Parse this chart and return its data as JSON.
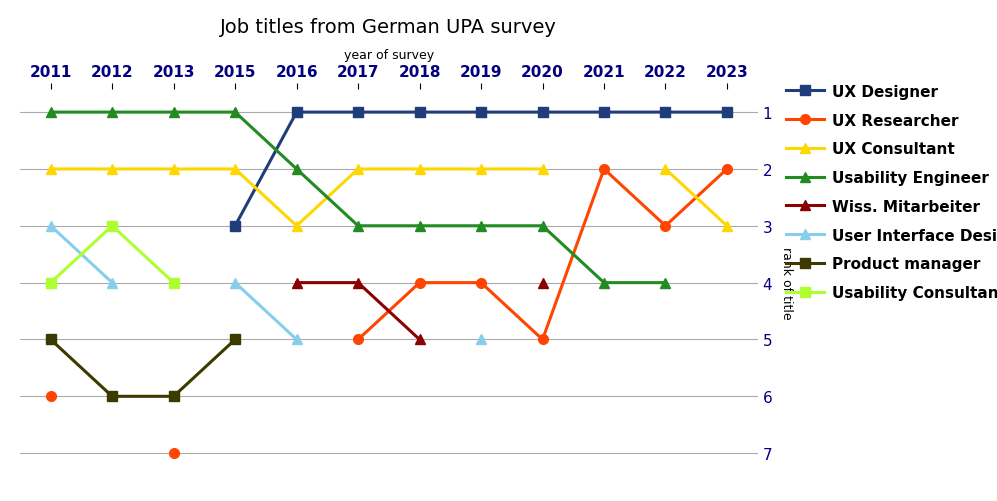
{
  "title": "Job titles from German UPA survey",
  "xlabel": "year of survey",
  "ylabel": "rank of title",
  "years": [
    2011,
    2012,
    2013,
    2015,
    2016,
    2017,
    2018,
    2019,
    2020,
    2021,
    2022,
    2023
  ],
  "series": [
    {
      "name": "UX Designer",
      "color": "#1F3D7A",
      "marker": "s",
      "data": [
        [
          2011,
          null
        ],
        [
          2012,
          null
        ],
        [
          2013,
          null
        ],
        [
          2015,
          3
        ],
        [
          2016,
          1
        ],
        [
          2017,
          1
        ],
        [
          2018,
          1
        ],
        [
          2019,
          1
        ],
        [
          2020,
          1
        ],
        [
          2021,
          1
        ],
        [
          2022,
          1
        ],
        [
          2023,
          1
        ]
      ]
    },
    {
      "name": "UX Researcher",
      "color": "#FF4500",
      "marker": "o",
      "data": [
        [
          2011,
          6
        ],
        [
          2012,
          null
        ],
        [
          2013,
          7
        ],
        [
          2015,
          null
        ],
        [
          2016,
          null
        ],
        [
          2017,
          5
        ],
        [
          2018,
          4
        ],
        [
          2019,
          4
        ],
        [
          2020,
          5
        ],
        [
          2021,
          2
        ],
        [
          2022,
          3
        ],
        [
          2023,
          2
        ]
      ]
    },
    {
      "name": "UX Consultant",
      "color": "#FFD700",
      "marker": "^",
      "data": [
        [
          2011,
          2
        ],
        [
          2012,
          2
        ],
        [
          2013,
          2
        ],
        [
          2015,
          2
        ],
        [
          2016,
          3
        ],
        [
          2017,
          2
        ],
        [
          2018,
          2
        ],
        [
          2019,
          2
        ],
        [
          2020,
          2
        ],
        [
          2021,
          null
        ],
        [
          2022,
          2
        ],
        [
          2023,
          3
        ]
      ]
    },
    {
      "name": "Usability Engineer",
      "color": "#228B22",
      "marker": "^",
      "data": [
        [
          2011,
          1
        ],
        [
          2012,
          1
        ],
        [
          2013,
          1
        ],
        [
          2015,
          1
        ],
        [
          2016,
          2
        ],
        [
          2017,
          3
        ],
        [
          2018,
          3
        ],
        [
          2019,
          3
        ],
        [
          2020,
          3
        ],
        [
          2021,
          4
        ],
        [
          2022,
          4
        ],
        [
          2023,
          null
        ]
      ]
    },
    {
      "name": "Wiss. Mitarbeiter",
      "color": "#8B0000",
      "marker": "^",
      "data": [
        [
          2011,
          null
        ],
        [
          2012,
          null
        ],
        [
          2013,
          null
        ],
        [
          2015,
          null
        ],
        [
          2016,
          4
        ],
        [
          2017,
          4
        ],
        [
          2018,
          5
        ],
        [
          2019,
          null
        ],
        [
          2020,
          4
        ],
        [
          2021,
          null
        ],
        [
          2022,
          null
        ],
        [
          2023,
          null
        ]
      ]
    },
    {
      "name": "User Interface Designer",
      "color": "#87CEEB",
      "marker": "^",
      "data": [
        [
          2011,
          3
        ],
        [
          2012,
          4
        ],
        [
          2013,
          null
        ],
        [
          2015,
          4
        ],
        [
          2016,
          5
        ],
        [
          2017,
          null
        ],
        [
          2018,
          null
        ],
        [
          2019,
          5
        ],
        [
          2020,
          null
        ],
        [
          2021,
          null
        ],
        [
          2022,
          null
        ],
        [
          2023,
          null
        ]
      ]
    },
    {
      "name": "Product manager",
      "color": "#3B3B00",
      "marker": "s",
      "data": [
        [
          2011,
          5
        ],
        [
          2012,
          6
        ],
        [
          2013,
          6
        ],
        [
          2015,
          5
        ],
        [
          2016,
          null
        ],
        [
          2017,
          null
        ],
        [
          2018,
          null
        ],
        [
          2019,
          null
        ],
        [
          2020,
          null
        ],
        [
          2021,
          null
        ],
        [
          2022,
          null
        ],
        [
          2023,
          null
        ]
      ]
    },
    {
      "name": "Usability Consultant",
      "color": "#ADFF2F",
      "marker": "s",
      "data": [
        [
          2011,
          4
        ],
        [
          2012,
          3
        ],
        [
          2013,
          4
        ],
        [
          2015,
          null
        ],
        [
          2016,
          null
        ],
        [
          2017,
          null
        ],
        [
          2018,
          null
        ],
        [
          2019,
          null
        ],
        [
          2020,
          null
        ],
        [
          2021,
          null
        ],
        [
          2022,
          null
        ],
        [
          2023,
          null
        ]
      ]
    }
  ],
  "ylim": [
    7.4,
    0.6
  ],
  "yticks": [
    1,
    2,
    3,
    4,
    5,
    6,
    7
  ],
  "background_color": "#ffffff",
  "grid_color": "#aaaaaa",
  "title_fontsize": 14,
  "tick_fontsize": 11,
  "legend_fontsize": 11
}
